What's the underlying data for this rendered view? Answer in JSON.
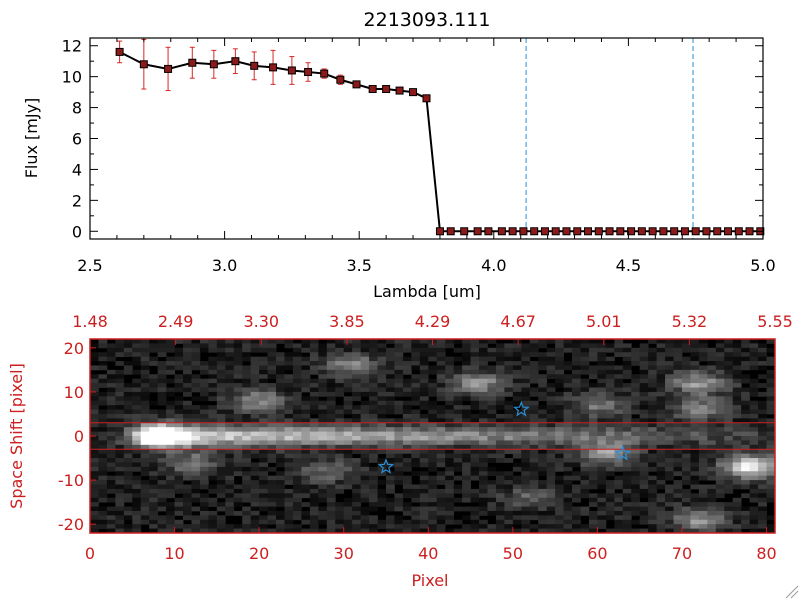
{
  "chart_data": [
    {
      "type": "line",
      "title": "2213093.111",
      "xlabel": "Lambda [um]",
      "ylabel": "Flux [mJy]",
      "xlim": [
        2.5,
        5.0
      ],
      "ylim": [
        -0.5,
        12.5
      ],
      "x_ticks": [
        "2.5",
        "3.0",
        "3.5",
        "4.0",
        "4.5",
        "5.0"
      ],
      "y_ticks": [
        "0",
        "2",
        "4",
        "6",
        "8",
        "10",
        "12"
      ],
      "series": [
        {
          "name": "flux",
          "color": "#000000",
          "marker_color": "#8b1a1a",
          "errorbar_color": "#d62728",
          "x": [
            2.61,
            2.7,
            2.79,
            2.88,
            2.96,
            3.04,
            3.11,
            3.18,
            3.25,
            3.31,
            3.37,
            3.43,
            3.49,
            3.55,
            3.6,
            3.65,
            3.7,
            3.75,
            3.8,
            3.84,
            3.89,
            3.94,
            3.98,
            4.03,
            4.07,
            4.11,
            4.15,
            4.19,
            4.23,
            4.27,
            4.31,
            4.35,
            4.39,
            4.43,
            4.47,
            4.51,
            4.55,
            4.59,
            4.63,
            4.67,
            4.71,
            4.75,
            4.79,
            4.83,
            4.87,
            4.91,
            4.95,
            4.99
          ],
          "y": [
            11.6,
            10.8,
            10.5,
            10.9,
            10.8,
            11.0,
            10.7,
            10.6,
            10.4,
            10.3,
            10.2,
            9.8,
            9.5,
            9.2,
            9.2,
            9.1,
            9.0,
            8.6,
            0,
            0,
            0,
            0,
            0,
            0,
            0,
            0,
            0,
            0,
            0,
            0,
            0,
            0,
            0,
            0,
            0,
            0,
            0,
            0,
            0,
            0,
            0,
            0,
            0,
            0,
            0,
            0,
            0,
            0
          ],
          "yerr": [
            0.7,
            1.6,
            1.4,
            1.0,
            0.9,
            0.8,
            0.9,
            1.1,
            0.9,
            0.6,
            0.3,
            0.3,
            0.2,
            0.2,
            0.2,
            0.2,
            0.2,
            0.2,
            0,
            0,
            0,
            0,
            0,
            0,
            0,
            0,
            0,
            0,
            0,
            0,
            0,
            0,
            0,
            0,
            0,
            0,
            0,
            0,
            0,
            0,
            0,
            0,
            0,
            0,
            0,
            0,
            0,
            0
          ]
        }
      ],
      "vlines": [
        {
          "x": 4.12,
          "color": "#2a8fd6",
          "style": "dashed"
        },
        {
          "x": 4.74,
          "color": "#2a8fd6",
          "style": "dashed"
        }
      ],
      "hline_dashed": {
        "y": 0,
        "color": "#d62728"
      }
    },
    {
      "type": "heatmap",
      "xlabel": "Pixel",
      "ylabel": "Space Shift [pixel]",
      "xlim": [
        0,
        81
      ],
      "ylim": [
        -22,
        22
      ],
      "x_ticks": [
        "0",
        "10",
        "20",
        "30",
        "40",
        "50",
        "60",
        "70",
        "80"
      ],
      "y_ticks": [
        "-20",
        "-10",
        "0",
        "10",
        "20"
      ],
      "top_axis_ticks": [
        "1.48",
        "2.49",
        "3.30",
        "3.85",
        "4.29",
        "4.67",
        "5.01",
        "5.32",
        "5.55"
      ],
      "axis_color": "#cc1f1f",
      "extraction_band": [
        -3,
        3
      ],
      "trace": {
        "y_center": 0,
        "peak_x": 9,
        "fade_x": 75
      },
      "blobs": [
        {
          "x": 8,
          "y": 0,
          "brightness": 1.0
        },
        {
          "x": 20,
          "y": 8,
          "brightness": 0.45
        },
        {
          "x": 31,
          "y": 16,
          "brightness": 0.4
        },
        {
          "x": 46,
          "y": 12,
          "brightness": 0.45
        },
        {
          "x": 60,
          "y": 7,
          "brightness": 0.35
        },
        {
          "x": 72,
          "y": 12,
          "brightness": 0.5
        },
        {
          "x": 72,
          "y": 6,
          "brightness": 0.4
        },
        {
          "x": 78,
          "y": -7,
          "brightness": 0.85
        },
        {
          "x": 12,
          "y": -6,
          "brightness": 0.35
        },
        {
          "x": 28,
          "y": -8,
          "brightness": 0.3
        },
        {
          "x": 61,
          "y": -4,
          "brightness": 0.5
        },
        {
          "x": 72,
          "y": -19,
          "brightness": 0.45
        },
        {
          "x": 52,
          "y": -14,
          "brightness": 0.25
        }
      ],
      "stars": [
        {
          "x": 35,
          "y": -7
        },
        {
          "x": 51,
          "y": 6
        },
        {
          "x": 63,
          "y": -4
        }
      ],
      "star_color": "#2a8fd6"
    }
  ]
}
